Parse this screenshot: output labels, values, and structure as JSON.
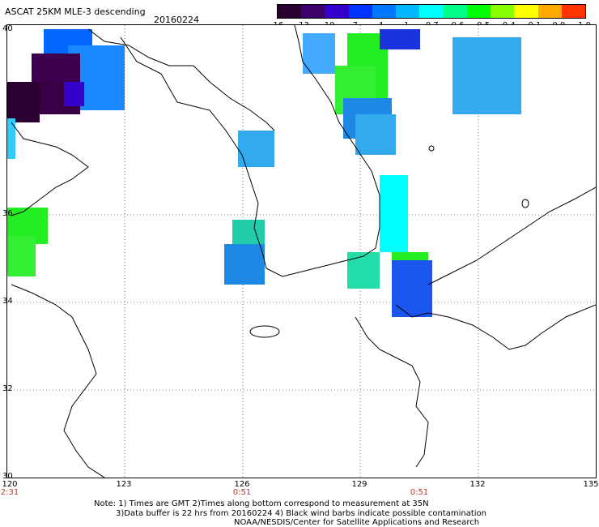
{
  "map": {
    "title": "ASCAT 25KM MLE-3 descending",
    "date": "20160224",
    "colorbar": {
      "colors": [
        "#2a0030",
        "#3d006a",
        "#3300cc",
        "#0033ff",
        "#0077ff",
        "#00b7ff",
        "#00ffff",
        "#00ff88",
        "#00ff00",
        "#88ff00",
        "#ffff00",
        "#ffaa00",
        "#ff3300"
      ],
      "ticks": [
        "-16",
        "-13",
        "-10",
        "-7",
        "-4",
        "-1",
        "-0.7",
        "-0.6",
        "-0.5",
        "-0.4",
        "-0.1",
        "0.0",
        "1.0"
      ]
    },
    "lat_labels": [
      "40",
      "36",
      "34",
      "32",
      "30"
    ],
    "lon_labels": [
      "120",
      "123",
      "126",
      "129",
      "132",
      "135"
    ],
    "time_labels": [
      "2:31",
      "0:51",
      "0:51"
    ],
    "notes": [
      "Note: 1) Times are GMT 2)Times along bottom correspond to measurement at 35N",
      "3)Data buffer is 22 hrs from 20160224 4) Black wind barbs indicate possible contamination",
      "NOAA/NESDIS/Center for Satellite Applications and Research"
    ]
  }
}
